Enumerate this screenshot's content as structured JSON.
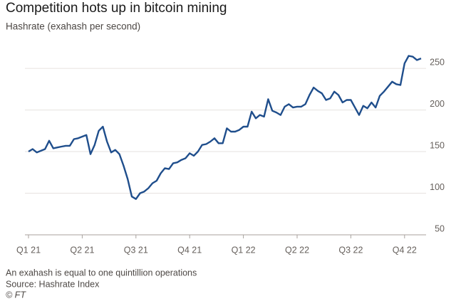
{
  "chart_data": {
    "type": "line",
    "title": "Competition hots up in bitcoin mining",
    "subtitle": "Hashrate (exahash per second)",
    "note": "An exahash is equal to one quintillion operations",
    "source": "Source: Hashrate Index",
    "credit": "© FT",
    "categories": [
      "Q1 21",
      null,
      null,
      null,
      null,
      null,
      null,
      null,
      null,
      null,
      null,
      null,
      null,
      "Q2 21",
      null,
      null,
      null,
      null,
      null,
      null,
      null,
      null,
      null,
      null,
      null,
      null,
      "Q3 21",
      null,
      null,
      null,
      null,
      null,
      null,
      null,
      null,
      null,
      null,
      null,
      null,
      "Q4 21",
      null,
      null,
      null,
      null,
      null,
      null,
      null,
      null,
      null,
      null,
      null,
      null,
      "Q1 22",
      null,
      null,
      null,
      null,
      null,
      null,
      null,
      null,
      null,
      null,
      null,
      null,
      "Q2 22",
      null,
      null,
      null,
      null,
      null,
      null,
      null,
      null,
      null,
      null,
      null,
      null,
      "Q3 22",
      null,
      null,
      null,
      null,
      null,
      null,
      null,
      null,
      null,
      null,
      null,
      null,
      "Q4 22",
      null,
      null,
      null,
      null
    ],
    "series": [
      {
        "color": "#1f4e8c",
        "values": [
          150,
          153,
          149,
          151,
          153,
          163,
          154,
          155,
          156,
          157,
          157,
          165,
          166,
          168,
          170,
          147,
          158,
          175,
          180,
          162,
          149,
          152,
          147,
          133,
          117,
          96,
          93,
          100,
          102,
          106,
          112,
          115,
          124,
          130,
          129,
          136,
          137,
          140,
          142,
          148,
          145,
          150,
          158,
          159,
          162,
          166,
          160,
          160,
          178,
          174,
          174,
          176,
          180,
          180,
          198,
          190,
          194,
          192,
          213,
          199,
          197,
          194,
          204,
          207,
          203,
          204,
          204,
          207,
          218,
          227,
          223,
          220,
          212,
          214,
          222,
          218,
          209,
          212,
          212,
          203,
          194,
          205,
          202,
          209,
          203,
          217,
          222,
          228,
          234,
          231,
          230,
          256,
          265,
          264,
          260,
          262
        ]
      }
    ],
    "ylim": [
      50,
      280
    ],
    "yticks": [
      50,
      100,
      150,
      200,
      250
    ],
    "grid": true
  }
}
